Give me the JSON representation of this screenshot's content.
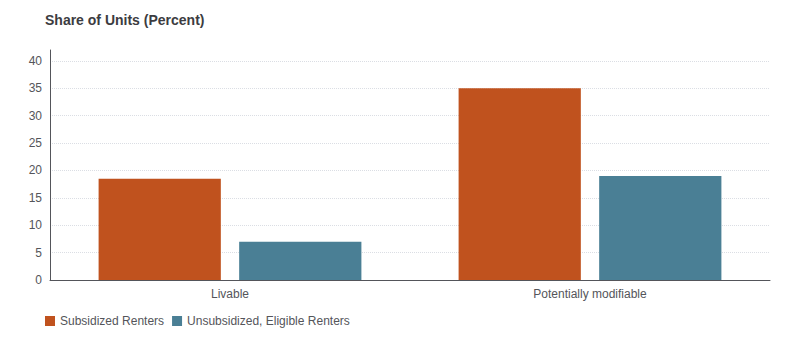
{
  "chart_data": {
    "type": "bar",
    "title": "Share of Units (Percent)",
    "categories": [
      "Livable",
      "Potentially modifiable"
    ],
    "series": [
      {
        "name": "Subsidized Renters",
        "color": "#c0521e",
        "values": [
          18.5,
          35.0
        ]
      },
      {
        "name": "Unsubsidized, Eligible Renters",
        "color": "#4a7f95",
        "values": [
          7.0,
          19.0
        ]
      }
    ],
    "ylim": [
      0,
      42
    ],
    "yticks": [
      0,
      5,
      10,
      15,
      20,
      25,
      30,
      35,
      40
    ],
    "grid": true,
    "legend": "bottom"
  }
}
